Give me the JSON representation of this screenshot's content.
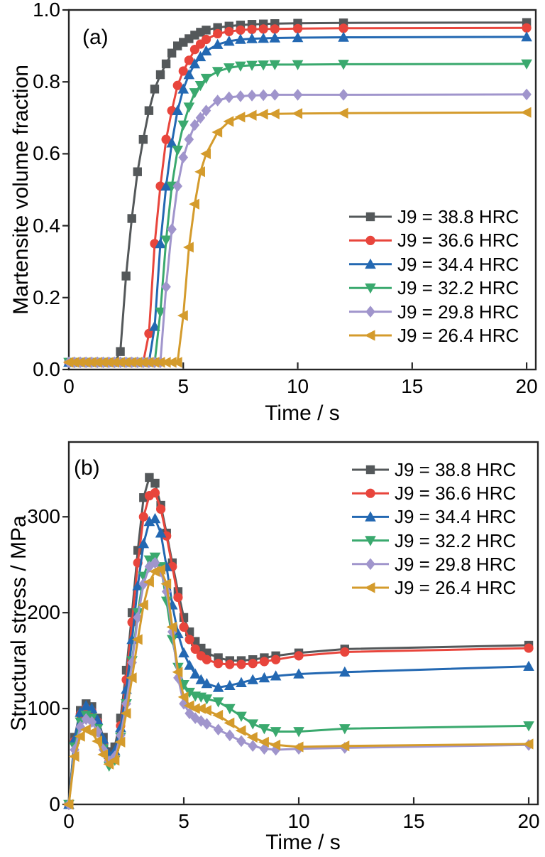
{
  "style": {
    "axis_color": "#262626",
    "text_color": "#000000",
    "background": "#ffffff"
  },
  "chart_data": [
    {
      "type": "line",
      "panel_label": "(a)",
      "xlabel": "Time / s",
      "ylabel": "Martensite volume fraction",
      "xlim": [
        0,
        20.4
      ],
      "ylim": [
        0,
        1.0
      ],
      "xticks": [
        0,
        5,
        10,
        15,
        20
      ],
      "xtick_labels": [
        "0",
        "5",
        "10",
        "15",
        "20"
      ],
      "yticks": [
        0.0,
        0.2,
        0.4,
        0.6,
        0.8,
        1.0
      ],
      "ytick_labels": [
        "0.0",
        "0.2",
        "0.4",
        "0.6",
        "0.8",
        "1.0"
      ],
      "grid": false,
      "legend_position": "right-center",
      "x": [
        0,
        0.25,
        0.5,
        0.75,
        1,
        1.25,
        1.5,
        1.75,
        2,
        2.25,
        2.5,
        2.75,
        3,
        3.25,
        3.5,
        3.75,
        4,
        4.25,
        4.5,
        4.75,
        5,
        5.25,
        5.5,
        5.75,
        6,
        6.5,
        7,
        7.5,
        8,
        8.5,
        9,
        10,
        12,
        20
      ],
      "series": [
        {
          "name": "J9 = 38.8 HRC",
          "color": "#54585a",
          "marker": "square",
          "values": [
            0.02,
            0.02,
            0.02,
            0.02,
            0.02,
            0.02,
            0.02,
            0.02,
            0.02,
            0.05,
            0.26,
            0.42,
            0.55,
            0.64,
            0.72,
            0.78,
            0.82,
            0.85,
            0.88,
            0.9,
            0.91,
            0.92,
            0.93,
            0.938,
            0.944,
            0.951,
            0.955,
            0.958,
            0.96,
            0.961,
            0.962,
            0.963,
            0.964,
            0.965
          ]
        },
        {
          "name": "J9 = 36.6 HRC",
          "color": "#e8453c",
          "marker": "circle",
          "values": [
            0.02,
            0.02,
            0.02,
            0.02,
            0.02,
            0.02,
            0.02,
            0.02,
            0.02,
            0.02,
            0.02,
            0.02,
            0.02,
            0.02,
            0.1,
            0.35,
            0.51,
            0.64,
            0.72,
            0.79,
            0.83,
            0.86,
            0.89,
            0.905,
            0.918,
            0.934,
            0.94,
            0.944,
            0.946,
            0.947,
            0.947,
            0.948,
            0.949,
            0.95
          ]
        },
        {
          "name": "J9 = 34.4 HRC",
          "color": "#2368b2",
          "marker": "triangle-up",
          "values": [
            0.02,
            0.02,
            0.02,
            0.02,
            0.02,
            0.02,
            0.02,
            0.02,
            0.02,
            0.02,
            0.02,
            0.02,
            0.02,
            0.02,
            0.02,
            0.12,
            0.35,
            0.51,
            0.63,
            0.72,
            0.78,
            0.82,
            0.85,
            0.87,
            0.886,
            0.904,
            0.913,
            0.918,
            0.92,
            0.921,
            0.922,
            0.923,
            0.924,
            0.925
          ]
        },
        {
          "name": "J9 = 32.2 HRC",
          "color": "#3aa96e",
          "marker": "triangle-down",
          "values": [
            0.02,
            0.02,
            0.02,
            0.02,
            0.02,
            0.02,
            0.02,
            0.02,
            0.02,
            0.02,
            0.02,
            0.02,
            0.02,
            0.02,
            0.02,
            0.02,
            0.16,
            0.36,
            0.51,
            0.61,
            0.68,
            0.73,
            0.77,
            0.79,
            0.81,
            0.829,
            0.839,
            0.844,
            0.846,
            0.847,
            0.848,
            0.848,
            0.849,
            0.85
          ]
        },
        {
          "name": "J9 = 29.8 HRC",
          "color": "#a095cc",
          "marker": "diamond",
          "values": [
            0.02,
            0.02,
            0.02,
            0.02,
            0.02,
            0.02,
            0.02,
            0.02,
            0.02,
            0.02,
            0.02,
            0.02,
            0.02,
            0.02,
            0.02,
            0.02,
            0.02,
            0.23,
            0.39,
            0.51,
            0.59,
            0.64,
            0.68,
            0.7,
            0.72,
            0.748,
            0.757,
            0.76,
            0.762,
            0.763,
            0.764,
            0.764,
            0.764,
            0.765
          ]
        },
        {
          "name": "J9 = 26.4 HRC",
          "color": "#d49b2c",
          "marker": "triangle-left",
          "values": [
            0.02,
            0.02,
            0.02,
            0.02,
            0.02,
            0.02,
            0.02,
            0.02,
            0.02,
            0.02,
            0.02,
            0.02,
            0.02,
            0.02,
            0.02,
            0.02,
            0.02,
            0.02,
            0.02,
            0.02,
            0.15,
            0.34,
            0.46,
            0.55,
            0.6,
            0.66,
            0.69,
            0.702,
            0.707,
            0.71,
            0.711,
            0.712,
            0.713,
            0.715
          ]
        }
      ]
    },
    {
      "type": "line",
      "panel_label": "(b)",
      "xlabel": "Time / s",
      "ylabel": "Structural stress / MPa",
      "xlim": [
        0,
        20.4
      ],
      "ylim": [
        0,
        378
      ],
      "xticks": [
        0,
        5,
        10,
        15,
        20
      ],
      "xtick_labels": [
        "0",
        "5",
        "10",
        "15",
        "20"
      ],
      "yticks": [
        0,
        100,
        200,
        300
      ],
      "ytick_labels": [
        "0",
        "100",
        "200",
        "300"
      ],
      "grid": false,
      "legend_position": "top-right",
      "x": [
        0,
        0.25,
        0.5,
        0.75,
        1,
        1.25,
        1.5,
        1.75,
        2,
        2.25,
        2.5,
        2.75,
        3,
        3.25,
        3.5,
        3.75,
        4,
        4.25,
        4.5,
        4.75,
        5,
        5.25,
        5.5,
        5.75,
        6,
        6.5,
        7,
        7.5,
        8,
        8.5,
        9,
        10,
        12,
        20
      ],
      "series": [
        {
          "name": "J9 = 38.8 HRC",
          "color": "#54585a",
          "marker": "square",
          "values": [
            0,
            70,
            98,
            105,
            102,
            90,
            70,
            55,
            60,
            90,
            140,
            200,
            265,
            320,
            341,
            335,
            312,
            283,
            252,
            222,
            195,
            180,
            170,
            163,
            158,
            153,
            150,
            150,
            151,
            153,
            155,
            158,
            162,
            166
          ]
        },
        {
          "name": "J9 = 36.6 HRC",
          "color": "#e8453c",
          "marker": "circle",
          "values": [
            0,
            66,
            94,
            100,
            97,
            86,
            64,
            45,
            52,
            82,
            130,
            190,
            252,
            300,
            322,
            325,
            308,
            280,
            248,
            216,
            185,
            172,
            162,
            155,
            151,
            147,
            146,
            146,
            147,
            149,
            151,
            155,
            159,
            163
          ]
        },
        {
          "name": "J9 = 34.4 HRC",
          "color": "#2368b2",
          "marker": "triangle-up",
          "values": [
            0,
            68,
            96,
            103,
            100,
            88,
            68,
            52,
            56,
            80,
            120,
            172,
            228,
            272,
            295,
            298,
            283,
            248,
            208,
            178,
            158,
            145,
            136,
            130,
            126,
            122,
            124,
            127,
            130,
            132,
            134,
            136,
            138,
            144
          ]
        },
        {
          "name": "J9 = 32.2 HRC",
          "color": "#3aa96e",
          "marker": "triangle-down",
          "values": [
            0,
            60,
            86,
            93,
            90,
            79,
            58,
            40,
            46,
            70,
            105,
            150,
            200,
            238,
            255,
            258,
            248,
            212,
            172,
            143,
            125,
            117,
            113,
            112,
            110,
            107,
            100,
            92,
            84,
            79,
            76,
            76,
            79,
            82
          ]
        },
        {
          "name": "J9 = 29.8 HRC",
          "color": "#a095cc",
          "marker": "diamond",
          "values": [
            0,
            57,
            81,
            89,
            86,
            76,
            57,
            45,
            50,
            72,
            105,
            148,
            195,
            230,
            248,
            252,
            243,
            222,
            180,
            132,
            105,
            95,
            90,
            87,
            84,
            78,
            72,
            66,
            61,
            58,
            57,
            58,
            59,
            62
          ]
        },
        {
          "name": "J9 = 26.4 HRC",
          "color": "#d49b2c",
          "marker": "triangle-left",
          "values": [
            0,
            50,
            71,
            78,
            75,
            66,
            52,
            42,
            46,
            65,
            95,
            132,
            172,
            208,
            232,
            243,
            245,
            230,
            185,
            138,
            112,
            103,
            100,
            100,
            98,
            93,
            85,
            77,
            70,
            65,
            62,
            60,
            61,
            63
          ]
        }
      ]
    }
  ]
}
